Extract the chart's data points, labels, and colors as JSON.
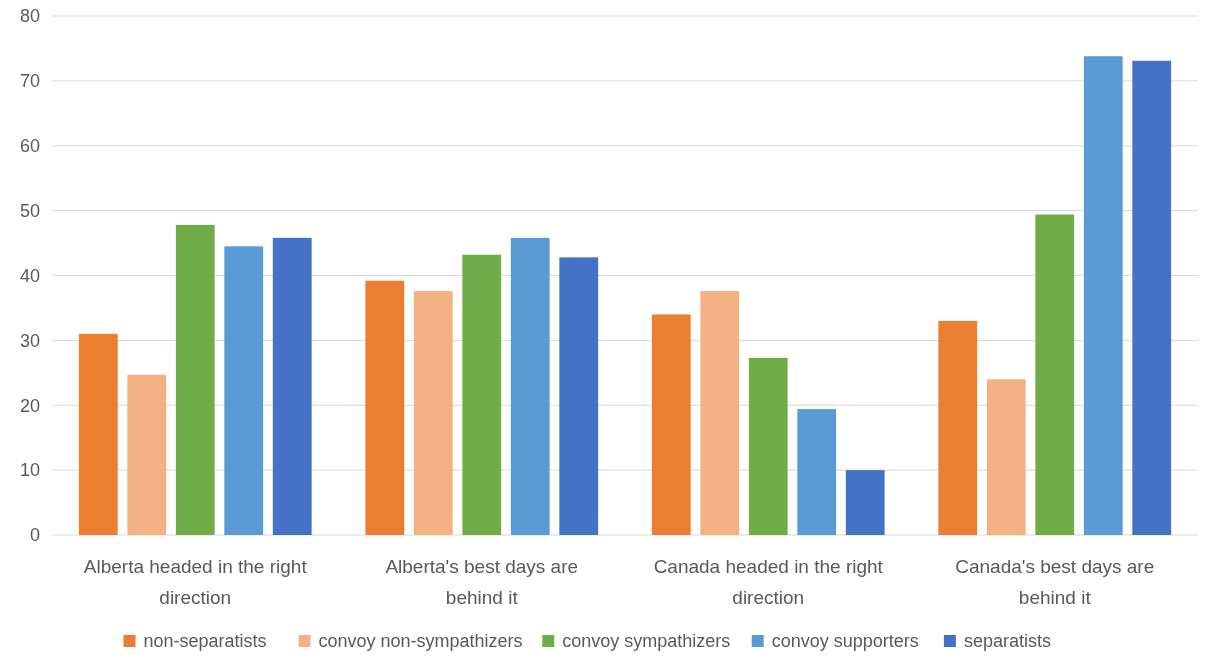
{
  "chart_data": {
    "type": "bar",
    "categories": [
      "Alberta headed in the right direction",
      "Alberta's best days are behind it",
      "Canada headed in the right direction",
      "Canada's best days are behind it"
    ],
    "series": [
      {
        "name": "non-separatists",
        "color": "#ed7d31",
        "values": [
          31,
          39.2,
          34,
          33
        ]
      },
      {
        "name": "convoy non-sympathizers",
        "color": "#f4b183",
        "values": [
          24.7,
          37.6,
          37.6,
          24
        ]
      },
      {
        "name": "convoy sympathizers",
        "color": "#70ad47",
        "values": [
          47.8,
          43.2,
          27.3,
          49.4
        ]
      },
      {
        "name": "convoy supporters",
        "color": "#5b9bd5",
        "values": [
          44.5,
          45.8,
          19.4,
          73.8
        ]
      },
      {
        "name": "separatists",
        "color": "#4472c4",
        "values": [
          45.8,
          42.8,
          10,
          73.1
        ]
      }
    ],
    "ylim": [
      0,
      80
    ],
    "yticks": [
      0,
      10,
      20,
      30,
      40,
      50,
      60,
      70,
      80
    ],
    "grid": "y",
    "legend": "bottom"
  }
}
